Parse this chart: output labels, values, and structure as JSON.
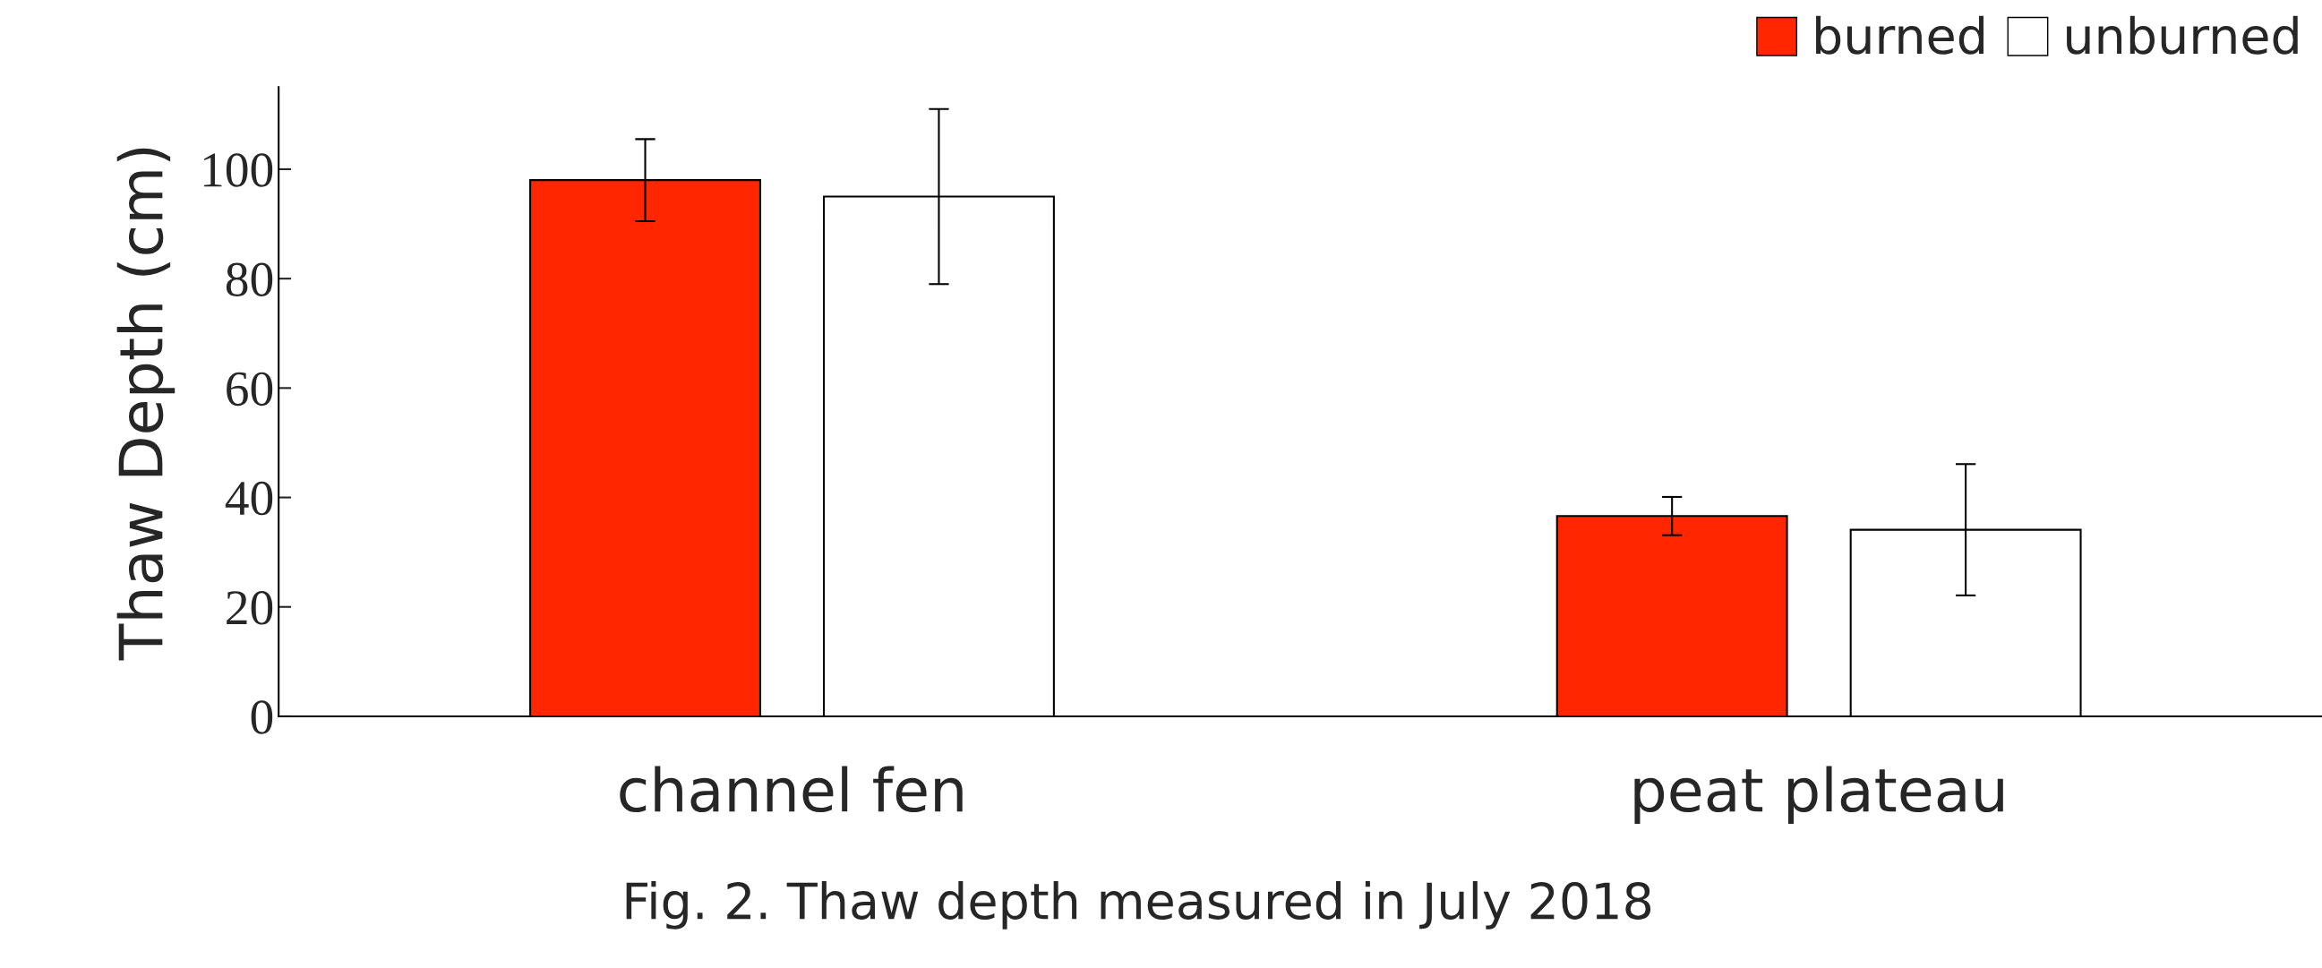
{
  "chart_data": {
    "type": "bar",
    "ylabel": "Thaw Depth (cm)",
    "categories": [
      "channel fen",
      "peat plateau"
    ],
    "series": [
      {
        "name": "burned",
        "color": "#ff2600",
        "values": [
          98,
          36.6
        ],
        "errors": [
          7.5,
          3.5
        ]
      },
      {
        "name": "unburned",
        "color": "#ffffff",
        "values": [
          95,
          34.1
        ],
        "errors": [
          16,
          12
        ]
      }
    ],
    "ylim": [
      0,
      115
    ],
    "yticks": [
      0,
      20,
      40,
      60,
      80,
      100
    ],
    "grid": false,
    "legend": "top right",
    "annotations": [
      "Fig. 2. Thaw depth measured in July 2018"
    ]
  }
}
